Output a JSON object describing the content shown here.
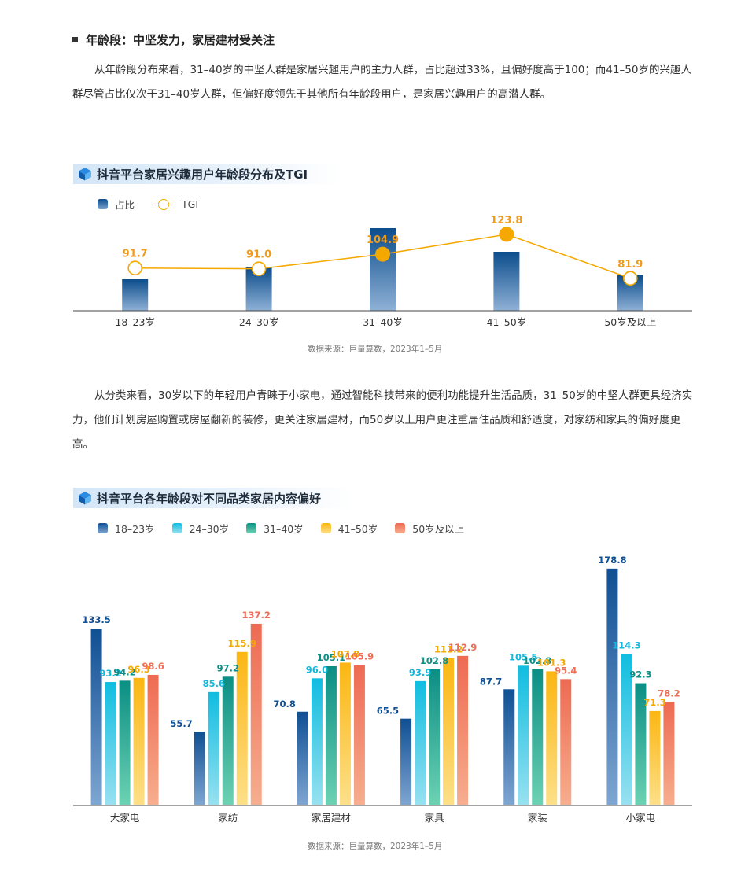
{
  "section": {
    "heading": "年龄段：中坚发力，家居建材受关注"
  },
  "paragraph1": "从年龄段分布来看，31–40岁的中坚人群是家居兴趣用户的主力人群，占比超过33%，且偏好度高于100；而41–50岁的兴趣人群尽管占比仅次于31–40岁人群，但偏好度领先于其他所有年龄段用户，是家居兴趣用户的高潜人群。",
  "paragraph2": "从分类来看，30岁以下的年轻用户青睐于小家电，通过智能科技带来的便利功能提升生活品质，31–50岁的中坚人群更具经济实力，他们计划房屋购置或房屋翻新的装修，更关注家居建材，而50岁以上用户更注重居住品质和舒适度，对家纺和家具的偏好度更高。",
  "chart1": {
    "title": "抖音平台家居兴趣用户年龄段分布及TGI",
    "source": "数据来源：巨量算数，2023年1–5月"
  },
  "chart2": {
    "title": "抖音平台各年龄段对不同品类家居内容偏好",
    "source": "数据来源：巨量算数，2023年1–5月"
  },
  "chart_data": [
    {
      "type": "bar",
      "title": "抖音平台家居兴趣用户年龄段分布及TGI",
      "categories": [
        "18–23岁",
        "24–30岁",
        "31–40岁",
        "41–50岁",
        "50岁及以上"
      ],
      "series": [
        {
          "name": "占比",
          "type": "bar",
          "values": [
            8,
            11,
            21,
            15,
            9
          ],
          "note": "estimated; unlabeled"
        },
        {
          "name": "TGI",
          "type": "line",
          "values": [
            91.7,
            91.0,
            104.9,
            123.8,
            81.9
          ],
          "highlight": [
            false,
            false,
            true,
            true,
            false
          ]
        }
      ],
      "tgi_domain": [
        60,
        150
      ],
      "share_domain": [
        0,
        22
      ],
      "colors": {
        "bar_top": "#0c4d8c",
        "bar_bottom": "#8fb1d6",
        "tgi": "#f5a800",
        "tgi_label": "#f09a1a"
      }
    },
    {
      "type": "bar",
      "title": "抖音平台各年龄段对不同品类家居内容偏好",
      "categories": [
        "大家电",
        "家纺",
        "家居建材",
        "家具",
        "家装",
        "小家电"
      ],
      "series": [
        {
          "name": "18–23岁",
          "values": [
            133.5,
            55.7,
            70.8,
            65.5,
            87.7,
            178.8
          ],
          "color_top": "#0f4f93",
          "color_bottom": "#7fa6d2",
          "label_color": "#0f4f93"
        },
        {
          "name": "24–30岁",
          "values": [
            93.2,
            85.6,
            96.0,
            93.9,
            105.5,
            114.3
          ],
          "color_top": "#10bde0",
          "color_bottom": "#98e1f0",
          "label_color": "#14b8dc"
        },
        {
          "name": "31–40岁",
          "values": [
            94.2,
            97.2,
            105.1,
            102.8,
            102.8,
            92.3
          ],
          "color_top": "#0b8e84",
          "color_bottom": "#6dd2b3",
          "label_color": "#0f8f86"
        },
        {
          "name": "41–50岁",
          "values": [
            96.3,
            115.9,
            107.8,
            111.2,
            101.3,
            71.3
          ],
          "color_top": "#fbb612",
          "color_bottom": "#fde08a",
          "label_color": "#f5a800"
        },
        {
          "name": "50岁及以上",
          "values": [
            98.6,
            137.2,
            105.9,
            112.9,
            95.4,
            78.2
          ],
          "color_top": "#ee6a52",
          "color_bottom": "#f7ae8f",
          "label_color": "#ef6e56"
        }
      ],
      "ylim": [
        0,
        190
      ]
    }
  ]
}
